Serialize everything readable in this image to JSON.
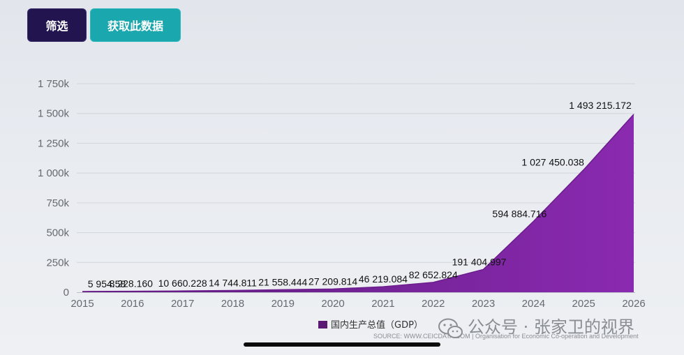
{
  "buttons": {
    "filter_label": "筛选",
    "get_data_label": "获取此数据"
  },
  "colors": {
    "area_top": "#8a2ab0",
    "area_bottom": "#5c1a7c",
    "line": "#6b1d8c",
    "legend_swatch": "#5a1874",
    "filter_button": "#22154f",
    "get_data_button": "#1aa7ad"
  },
  "chart_data": {
    "type": "area",
    "x": [
      "2015",
      "2016",
      "2017",
      "2018",
      "2019",
      "2020",
      "2021",
      "2022",
      "2023",
      "2024",
      "2025",
      "2026"
    ],
    "series": [
      {
        "name": "国内生产总值（GDP）",
        "values": [
          5954.58,
          8228.16,
          10660.228,
          14744.811,
          21558.444,
          27209.814,
          46219.084,
          82652.824,
          191404.997,
          594884.716,
          1027450.038,
          1493215.172
        ],
        "labels": [
          "5 954.58",
          "8 228.160",
          "10 660.228",
          "14 744.811",
          "21 558.444",
          "27 209.814",
          "46 219.084",
          "82 652.824",
          "191 404.997",
          "594 884.716",
          "1 027 450.038",
          "1 493 215.172"
        ]
      }
    ],
    "y_ticks": [
      0,
      250000,
      500000,
      750000,
      1000000,
      1250000,
      1500000,
      1750000
    ],
    "y_tick_labels": [
      "0",
      "250k",
      "500k",
      "750k",
      "1 000k",
      "1 250k",
      "1 500k",
      "1 750k"
    ],
    "ylim": [
      0,
      1750000
    ],
    "legend": "bottom-center",
    "grid": true,
    "source": "SOURCE: WWW.CEICDATA.COM | Organisation for Economic Co-operation and Development"
  },
  "watermark": {
    "text": "公众号 · 张家卫的视界"
  }
}
